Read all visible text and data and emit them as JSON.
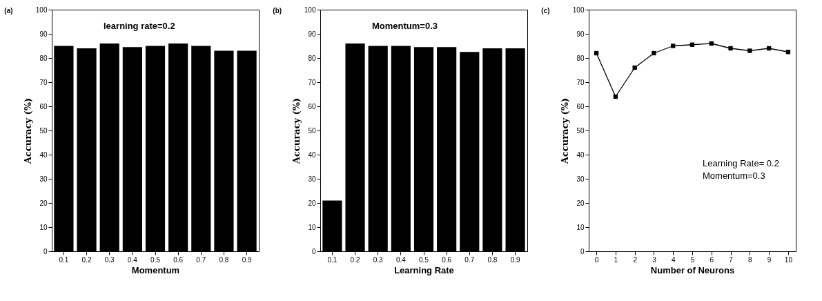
{
  "chart_data": [
    {
      "type": "bar",
      "title": "(a)",
      "categories": [
        "0.1",
        "0.2",
        "0.3",
        "0.4",
        "0.5",
        "0.6",
        "0.7",
        "0.8",
        "0.9"
      ],
      "values": [
        85,
        84,
        86,
        84.5,
        85,
        86,
        85,
        83,
        83
      ],
      "color": "#000000",
      "xlabel": "Momentum",
      "ylabel": "Accuracy (%)",
      "ylim": [
        0,
        100
      ],
      "yticks": [
        0,
        10,
        20,
        30,
        40,
        50,
        60,
        70,
        80,
        90,
        100
      ],
      "annotations": [
        "learning rate=0.2"
      ],
      "grid": false
    },
    {
      "type": "bar",
      "title": "(b)",
      "categories": [
        "0.1",
        "0.2",
        "0.3",
        "0.4",
        "0.5",
        "0.6",
        "0.7",
        "0.8",
        "0.9"
      ],
      "values": [
        21,
        86,
        85,
        85,
        84.5,
        84.5,
        82.5,
        84,
        84
      ],
      "color": "#000000",
      "xlabel": "Learning Rate",
      "ylabel": "Accuracy (%)",
      "ylim": [
        0,
        100
      ],
      "yticks": [
        0,
        10,
        20,
        30,
        40,
        50,
        60,
        70,
        80,
        90,
        100
      ],
      "annotations": [
        "Momentum=0.3"
      ],
      "grid": false
    },
    {
      "type": "line",
      "title": "(c)",
      "x": [
        0,
        1,
        2,
        3,
        4,
        5,
        6,
        7,
        8,
        9,
        10
      ],
      "values": [
        82,
        64,
        76,
        82,
        85,
        85.5,
        86,
        84,
        83,
        84,
        82.5
      ],
      "color": "#000000",
      "marker": "square",
      "xlabel": "Number of Neurons",
      "ylabel": "Accuracy (%)",
      "xlim": [
        -0.4,
        10.4
      ],
      "xticks": [
        0,
        1,
        2,
        3,
        4,
        5,
        6,
        7,
        8,
        9,
        10
      ],
      "ylim": [
        0,
        100
      ],
      "yticks": [
        0,
        10,
        20,
        30,
        40,
        50,
        60,
        70,
        80,
        90,
        100
      ],
      "annotations": [
        "Learning Rate= 0.2",
        "Momentum=0.3"
      ],
      "grid": false
    }
  ]
}
